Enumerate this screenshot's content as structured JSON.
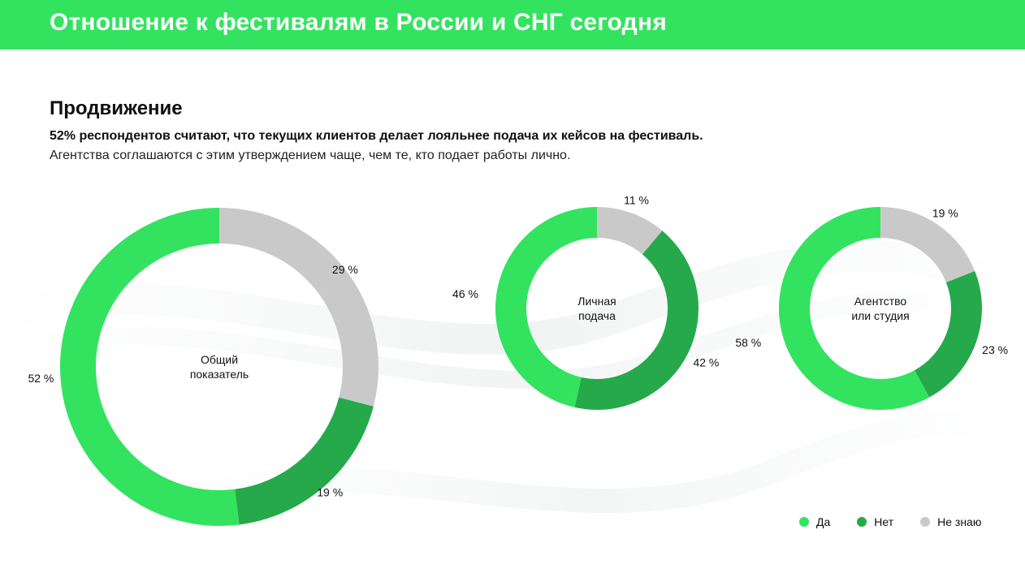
{
  "header": {
    "title": "Отношение к фестивалям в России и СНГ сегодня"
  },
  "section": {
    "title": "Продвижение",
    "lead_bold": "52% респондентов считают, что текущих клиентов делает лояльнее подача их кейсов на фестиваль.",
    "lead_regular": "Агентства соглашаются с этим утверждением чаще, чем те, кто подает работы лично."
  },
  "colors": {
    "header": "#33e35f",
    "yes": "#33e35f",
    "no": "#25a94a",
    "dont_know": "#c9c9c9"
  },
  "chart_data": [
    {
      "type": "pie",
      "center_label": [
        "Общий",
        "показатель"
      ],
      "slices": [
        {
          "name": "Не знаю",
          "value": 29,
          "label": "29 %"
        },
        {
          "name": "Нет",
          "value": 19,
          "label": "19 %"
        },
        {
          "name": "Да",
          "value": 52,
          "label": "52 %"
        }
      ]
    },
    {
      "type": "pie",
      "center_label": [
        "Личная",
        "подача"
      ],
      "slices": [
        {
          "name": "Не знаю",
          "value": 11,
          "label": "11 %"
        },
        {
          "name": "Нет",
          "value": 42,
          "label": "42 %"
        },
        {
          "name": "Да",
          "value": 46,
          "label": "46 %"
        }
      ]
    },
    {
      "type": "pie",
      "center_label": [
        "Агентство",
        "или студия"
      ],
      "slices": [
        {
          "name": "Не знаю",
          "value": 19,
          "label": "19 %"
        },
        {
          "name": "Нет",
          "value": 23,
          "label": "23 %"
        },
        {
          "name": "Да",
          "value": 58,
          "label": "58 %"
        }
      ]
    }
  ],
  "legend": {
    "placement": "bottom-right",
    "items": [
      {
        "label": "Да",
        "color": "#33e35f"
      },
      {
        "label": "Нет",
        "color": "#25a94a"
      },
      {
        "label": "Не знаю",
        "color": "#c9c9c9"
      }
    ]
  }
}
